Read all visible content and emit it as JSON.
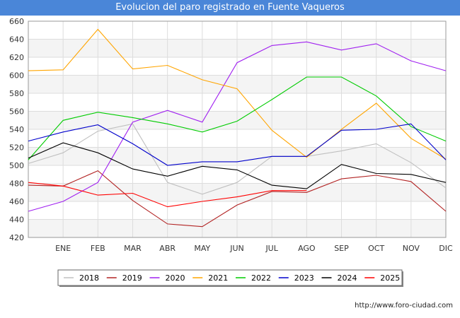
{
  "chart_data": {
    "type": "line",
    "title": "Evolucion del paro registrado en Fuente Vaqueros",
    "xlabel": "",
    "ylabel": "",
    "categories": [
      "",
      "ENE",
      "FEB",
      "MAR",
      "ABR",
      "MAY",
      "JUN",
      "JUL",
      "AGO",
      "SEP",
      "OCT",
      "NOV",
      "DIC"
    ],
    "ylim": [
      420,
      660
    ],
    "yticks": [
      420,
      440,
      460,
      480,
      500,
      520,
      540,
      560,
      580,
      600,
      620,
      640,
      660
    ],
    "grid": true,
    "legend_position": "bottom",
    "series": [
      {
        "name": "2018",
        "color": "#c0c0c0",
        "values": [
          502,
          514,
          538,
          546,
          481,
          468,
          481,
          510,
          510,
          516,
          524,
          503,
          475
        ]
      },
      {
        "name": "2019",
        "color": "#b22222",
        "values": [
          478,
          477,
          494,
          461,
          435,
          432,
          456,
          471,
          470,
          485,
          489,
          482,
          449
        ]
      },
      {
        "name": "2020",
        "color": "#a020f0",
        "values": [
          449,
          460,
          481,
          548,
          561,
          548,
          614,
          633,
          637,
          628,
          635,
          616,
          605
        ]
      },
      {
        "name": "2021",
        "color": "#ffa500",
        "values": [
          605,
          606,
          651,
          607,
          611,
          595,
          585,
          539,
          509,
          540,
          569,
          530,
          507
        ]
      },
      {
        "name": "2022",
        "color": "#00cc00",
        "values": [
          506,
          550,
          559,
          553,
          546,
          537,
          549,
          573,
          598,
          598,
          577,
          543,
          527
        ]
      },
      {
        "name": "2023",
        "color": "#0000cc",
        "values": [
          527,
          537,
          545,
          524,
          500,
          504,
          504,
          510,
          510,
          539,
          540,
          546,
          506
        ]
      },
      {
        "name": "2024",
        "color": "#000000",
        "values": [
          508,
          525,
          514,
          496,
          488,
          499,
          495,
          478,
          474,
          501,
          491,
          490,
          481
        ]
      },
      {
        "name": "2025",
        "color": "#ff0000",
        "values": [
          481,
          477,
          467,
          469,
          454,
          460,
          465,
          472,
          472,
          null,
          null,
          null,
          null
        ]
      }
    ]
  },
  "footer": {
    "url": "http://www.foro-ciudad.com"
  }
}
